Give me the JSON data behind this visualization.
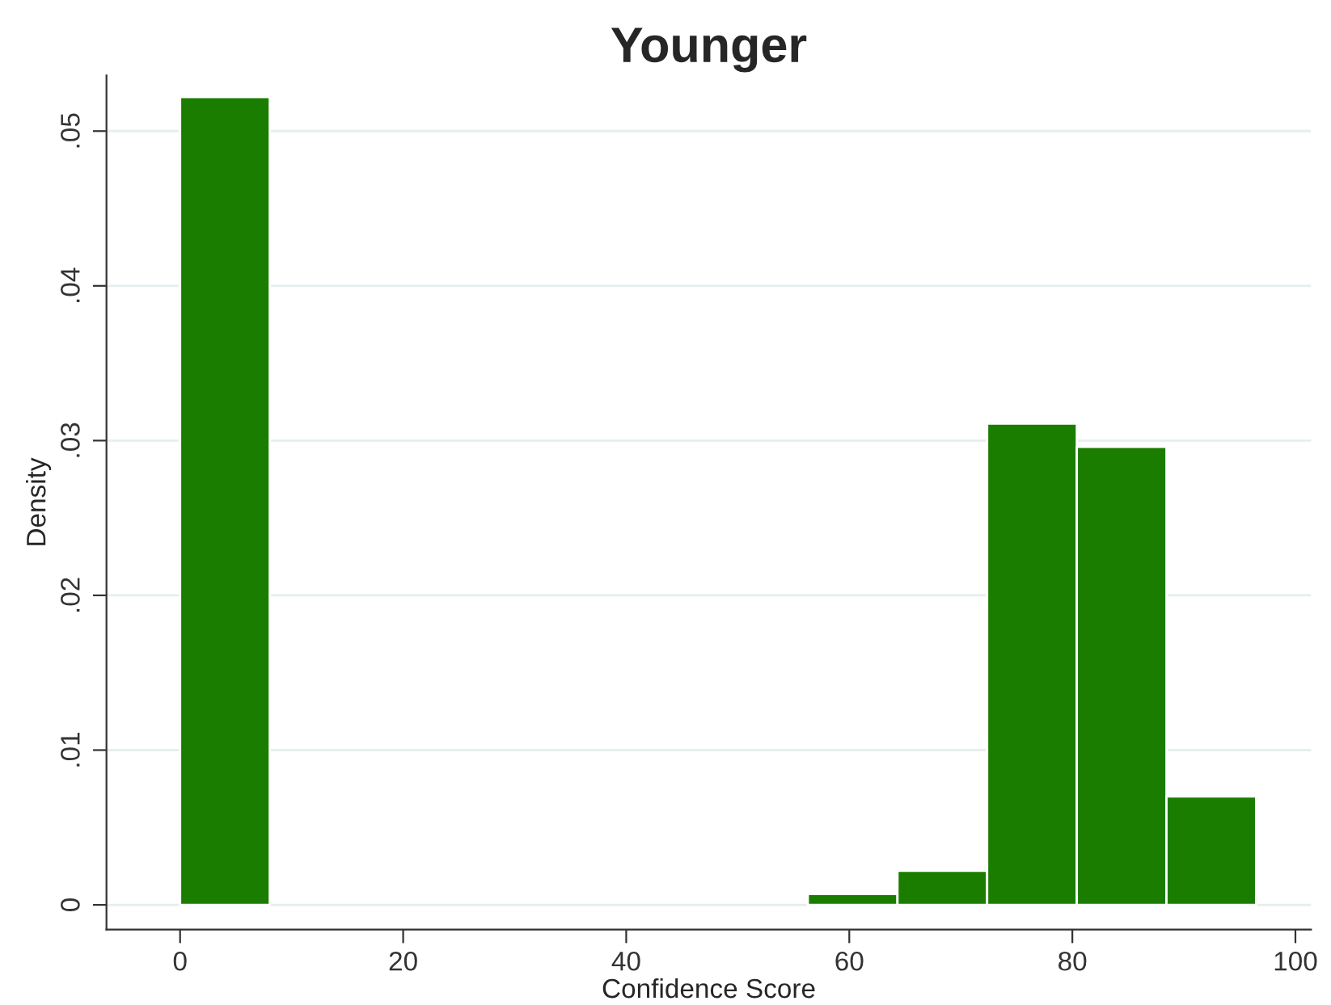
{
  "chart_data": {
    "type": "histogram",
    "title": "Younger",
    "xlabel": "Confidence Score",
    "ylabel": "Density",
    "bins": [
      0,
      8.04,
      16.08,
      24.12,
      32.16,
      40.2,
      48.24,
      56.28,
      64.32,
      72.36,
      80.4,
      88.44,
      96.48
    ],
    "values": [
      0.0522,
      0,
      0,
      0,
      0,
      0,
      0,
      0.0007,
      0.0022,
      0.0311,
      0.0296,
      0.007
    ],
    "color": "#1a7d00",
    "xlim": [
      -6.6,
      101.4
    ],
    "ylim": [
      -0.0016,
      0.0536
    ],
    "xticks": [
      0,
      20,
      40,
      60,
      80,
      100
    ],
    "yticks": [
      {
        "value": 0,
        "label": "0"
      },
      {
        "value": 0.01,
        "label": ".01"
      },
      {
        "value": 0.02,
        "label": ".02"
      },
      {
        "value": 0.03,
        "label": ".03"
      },
      {
        "value": 0.04,
        "label": ".04"
      },
      {
        "value": 0.05,
        "label": ".05"
      }
    ],
    "grid": "y"
  }
}
